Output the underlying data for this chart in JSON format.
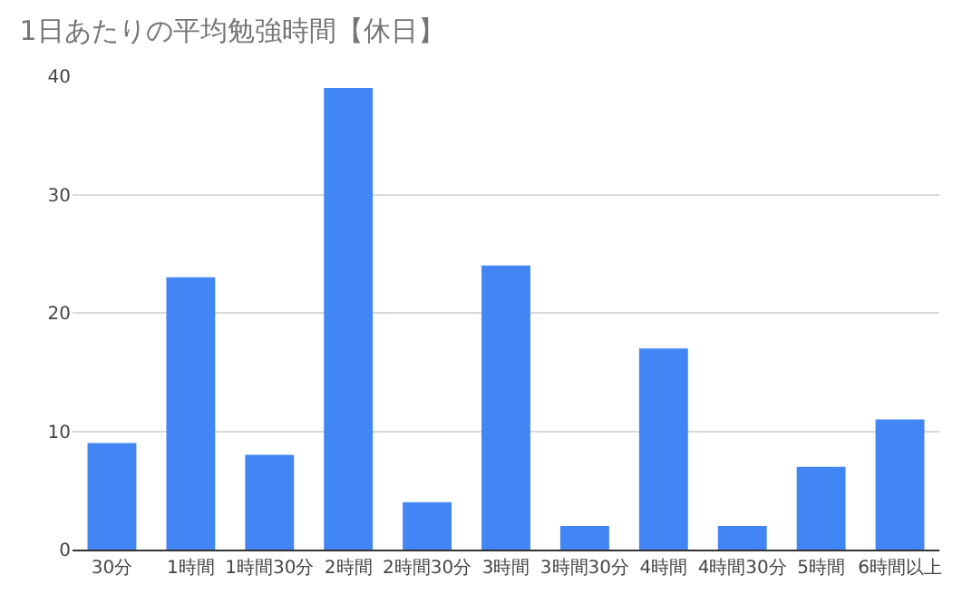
{
  "chart_data": {
    "type": "bar",
    "title": "1日あたりの平均勉強時間【休日】",
    "categories": [
      "30分",
      "1時間",
      "1時間30分",
      "2時間",
      "2時間30分",
      "3時間",
      "3時間30分",
      "4時間",
      "4時間30分",
      "5時間",
      "6時間以上"
    ],
    "values": [
      9,
      23,
      8,
      39,
      4,
      24,
      2,
      17,
      2,
      7,
      11
    ],
    "color": "#4285f4",
    "ylim": [
      0,
      40
    ],
    "yticks": [
      0,
      10,
      20,
      30,
      40
    ],
    "grid": "y",
    "legend": false
  }
}
